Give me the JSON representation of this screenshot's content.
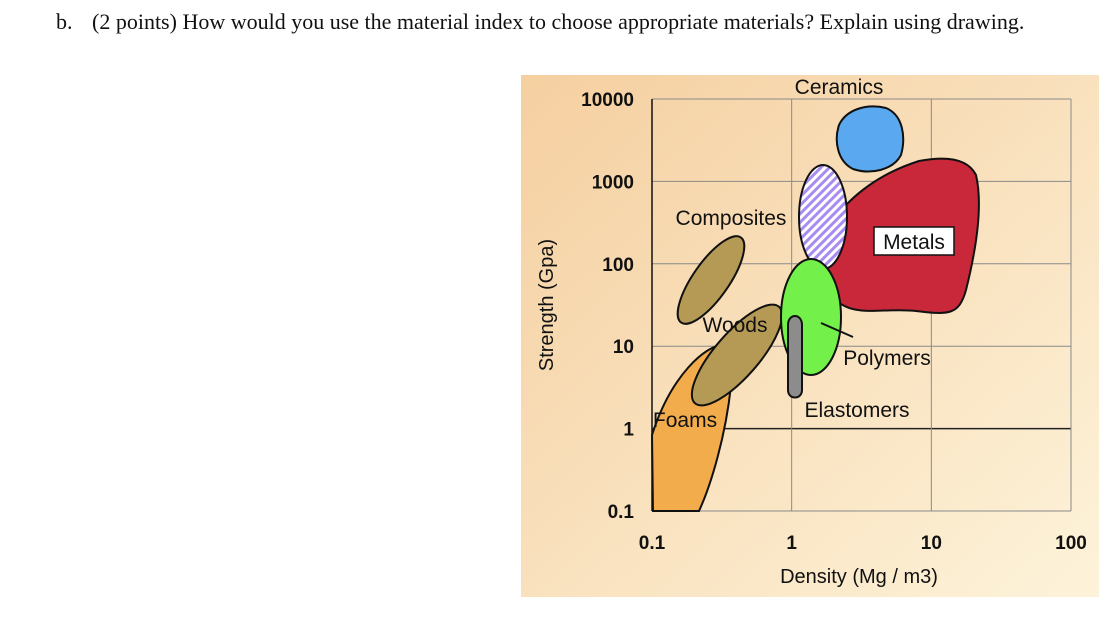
{
  "question": {
    "letter": "b.",
    "text": "(2 points) How would you use the material index to choose appropriate materials? Explain using drawing."
  },
  "chart_data": {
    "type": "scatter",
    "xlabel": "Density (Mg / m3)",
    "ylabel": "Strength (Gpa)",
    "x_scale": "log",
    "y_scale": "log",
    "xlim": [
      0.1,
      100
    ],
    "ylim": [
      0.1,
      10000
    ],
    "x_ticks": [
      "0.1",
      "1",
      "10",
      "100"
    ],
    "y_ticks": [
      "10000",
      "1000",
      "100",
      "10",
      "1",
      "0.1"
    ],
    "grid": true,
    "regions": [
      {
        "name": "Ceramics",
        "color": "#5aa9f0"
      },
      {
        "name": "Composites",
        "color": "#a98cf0"
      },
      {
        "name": "Metals",
        "color": "#c8283a"
      },
      {
        "name": "Woods",
        "color": "#b59a56"
      },
      {
        "name": "Polymers",
        "color": "#74f04a"
      },
      {
        "name": "Elastomers",
        "color": "#8c8c8c"
      },
      {
        "name": "Foams",
        "color": "#f2ac4c"
      }
    ],
    "background": [
      "#f5cfa0",
      "#fdf3da"
    ]
  }
}
